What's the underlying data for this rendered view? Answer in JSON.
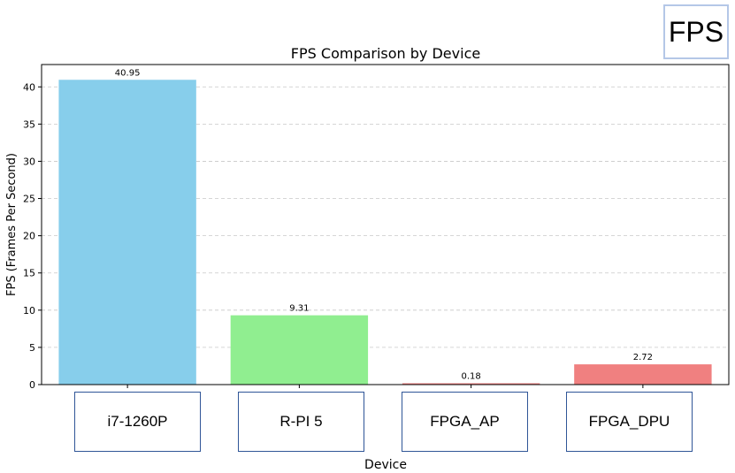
{
  "badge": {
    "label": "FPS"
  },
  "chart_data": {
    "type": "bar",
    "title": "FPS Comparison by Device",
    "xlabel": "Device",
    "ylabel": "FPS (Frames Per Second)",
    "categories": [
      "i7-1260P",
      "R-PI 5",
      "FPGA_AP",
      "FPGA_DPU"
    ],
    "values": [
      40.95,
      9.31,
      0.18,
      2.72
    ],
    "value_labels": [
      "40.95",
      "9.31",
      "0.18",
      "2.72"
    ],
    "colors": [
      "#87ceeb",
      "#90ee90",
      "#f08080",
      "#f08080"
    ],
    "ylim": [
      0,
      43
    ],
    "yticks": [
      0,
      5,
      10,
      15,
      20,
      25,
      30,
      35,
      40
    ],
    "grid": true
  }
}
